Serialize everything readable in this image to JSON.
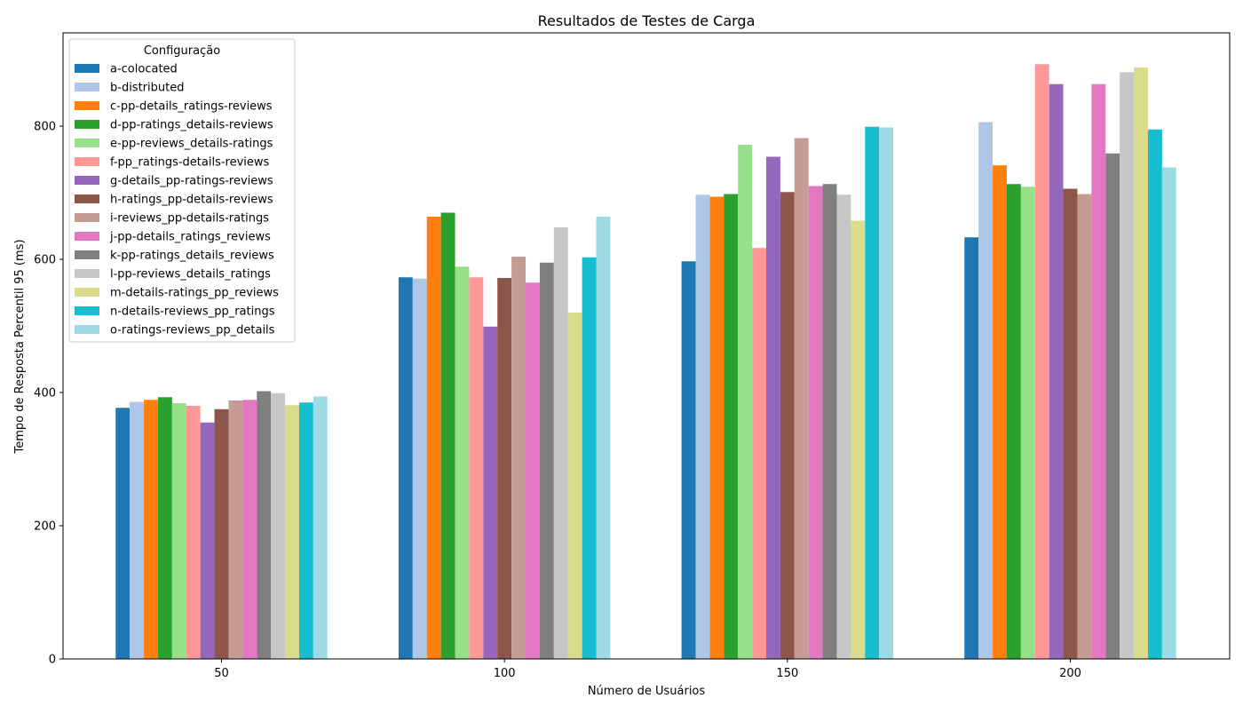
{
  "chart_data": {
    "type": "bar",
    "title": "Resultados de Testes de Carga",
    "xlabel": "Número de Usuários",
    "ylabel": "Tempo de Resposta Percentil 95 (ms)",
    "categories": [
      "50",
      "100",
      "150",
      "200"
    ],
    "ylim": [
      0,
      940
    ],
    "yticks": [
      0,
      200,
      400,
      600,
      800
    ],
    "grid": false,
    "legend": {
      "title": "Configuração",
      "placement": "top-left"
    },
    "series": [
      {
        "name": "a-colocated",
        "color": "#1f77b4",
        "values": [
          377,
          573,
          597,
          633
        ]
      },
      {
        "name": "b-distributed",
        "color": "#aec7e8",
        "values": [
          386,
          571,
          697,
          806
        ]
      },
      {
        "name": "c-pp-details_ratings-reviews",
        "color": "#ff7f0e",
        "values": [
          389,
          664,
          694,
          741
        ]
      },
      {
        "name": "d-pp-ratings_details-reviews",
        "color": "#2ca02c",
        "values": [
          393,
          670,
          698,
          713
        ]
      },
      {
        "name": "e-pp-reviews_details-ratings",
        "color": "#98df8a",
        "values": [
          384,
          589,
          772,
          709
        ]
      },
      {
        "name": "f-pp_ratings-details-reviews",
        "color": "#ff9896",
        "values": [
          380,
          573,
          617,
          893
        ]
      },
      {
        "name": "g-details_pp-ratings-reviews",
        "color": "#9467bd",
        "values": [
          355,
          499,
          754,
          863
        ]
      },
      {
        "name": "h-ratings_pp-details-reviews",
        "color": "#8c564b",
        "values": [
          375,
          572,
          701,
          706
        ]
      },
      {
        "name": "i-reviews_pp-details-ratings",
        "color": "#c49c94",
        "values": [
          388,
          604,
          782,
          698
        ]
      },
      {
        "name": "j-pp-details_ratings_reviews",
        "color": "#e377c2",
        "values": [
          389,
          565,
          710,
          863
        ]
      },
      {
        "name": "k-pp-ratings_details_reviews",
        "color": "#7f7f7f",
        "values": [
          402,
          595,
          713,
          759
        ]
      },
      {
        "name": "l-pp-reviews_details_ratings",
        "color": "#c7c7c7",
        "values": [
          399,
          648,
          697,
          881
        ]
      },
      {
        "name": "m-details-ratings_pp_reviews",
        "color": "#dbdb8d",
        "values": [
          381,
          520,
          658,
          888
        ]
      },
      {
        "name": "n-details-reviews_pp_ratings",
        "color": "#17becf",
        "values": [
          385,
          603,
          799,
          795
        ]
      },
      {
        "name": "o-ratings-reviews_pp_details",
        "color": "#9edae5",
        "values": [
          394,
          664,
          798,
          738
        ]
      }
    ]
  }
}
